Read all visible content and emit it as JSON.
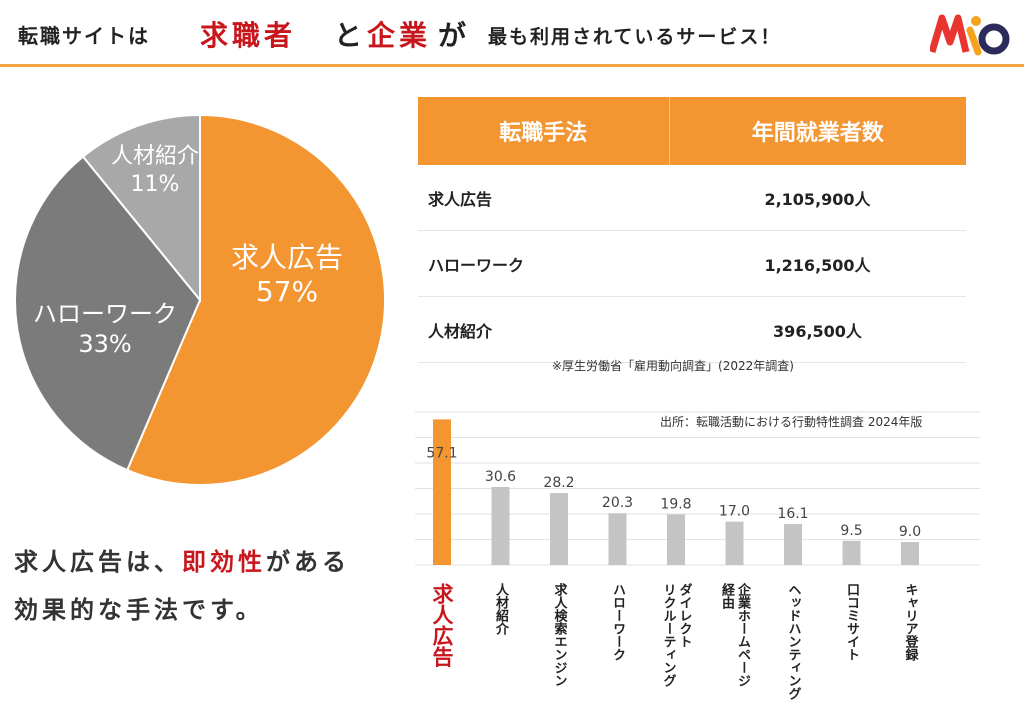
{
  "header": {
    "part1": "転職サイトは",
    "part2": "求職者",
    "part3": "と",
    "part4": "企業",
    "part5": "が",
    "part6": "最も利用されているサービス！"
  },
  "table": {
    "headers": [
      "転職手法",
      "年間就業者数"
    ],
    "rows": [
      {
        "method": "求人広告",
        "count": "2,105,900人"
      },
      {
        "method": "ハローワーク",
        "count": "1,216,500人"
      },
      {
        "method": "人材紹介",
        "count": "396,500人"
      }
    ],
    "note": "※厚生労働省「雇用動向調査」(2022年調査)"
  },
  "message": {
    "line1_a": "求人広告は、",
    "line1_b": "即効性",
    "line1_c": "がある",
    "line2": "効果的な手法です。"
  },
  "colors": {
    "accent": "#f39530",
    "red": "#c8161d",
    "dark_gray": "#7b7b7b",
    "light_gray": "#a8a8a8",
    "bar_gray": "#c4c4c4"
  },
  "chart_data": [
    {
      "type": "pie",
      "labels": [
        "求人広告",
        "ハローワーク",
        "人材紹介"
      ],
      "values": [
        57,
        33,
        11
      ],
      "value_labels": [
        "57%",
        "33%",
        "11%"
      ]
    },
    {
      "type": "bar",
      "source": "出所：転職活動における行動特性調査 2024年版",
      "categories": [
        "求人広告",
        "人材紹介",
        "求人検索エンジン",
        "ハローワーク",
        "ダイレクトリクルーティング",
        "企業ホームページ経由",
        "ヘッドハンティング",
        "口コミサイト",
        "キャリア登録"
      ],
      "category_lines": [
        [
          "求人広告"
        ],
        [
          "人材紹介"
        ],
        [
          "求人検索エンジン"
        ],
        [
          "ハローワーク"
        ],
        [
          "ダイレクト",
          "リクルーティング"
        ],
        [
          "企業ホームページ",
          "経由"
        ],
        [
          "ヘッドハンティング"
        ],
        [
          "口コミサイト"
        ],
        [
          "キャリア登録"
        ]
      ],
      "values": [
        57.1,
        30.6,
        28.2,
        20.3,
        19.8,
        17.0,
        16.1,
        9.5,
        9.0
      ],
      "value_labels": [
        "57.1",
        "30.6",
        "28.2",
        "20.3",
        "19.8",
        "17.0",
        "16.1",
        "9.5",
        "9.0"
      ],
      "highlight_index": 0,
      "grid": true
    }
  ]
}
